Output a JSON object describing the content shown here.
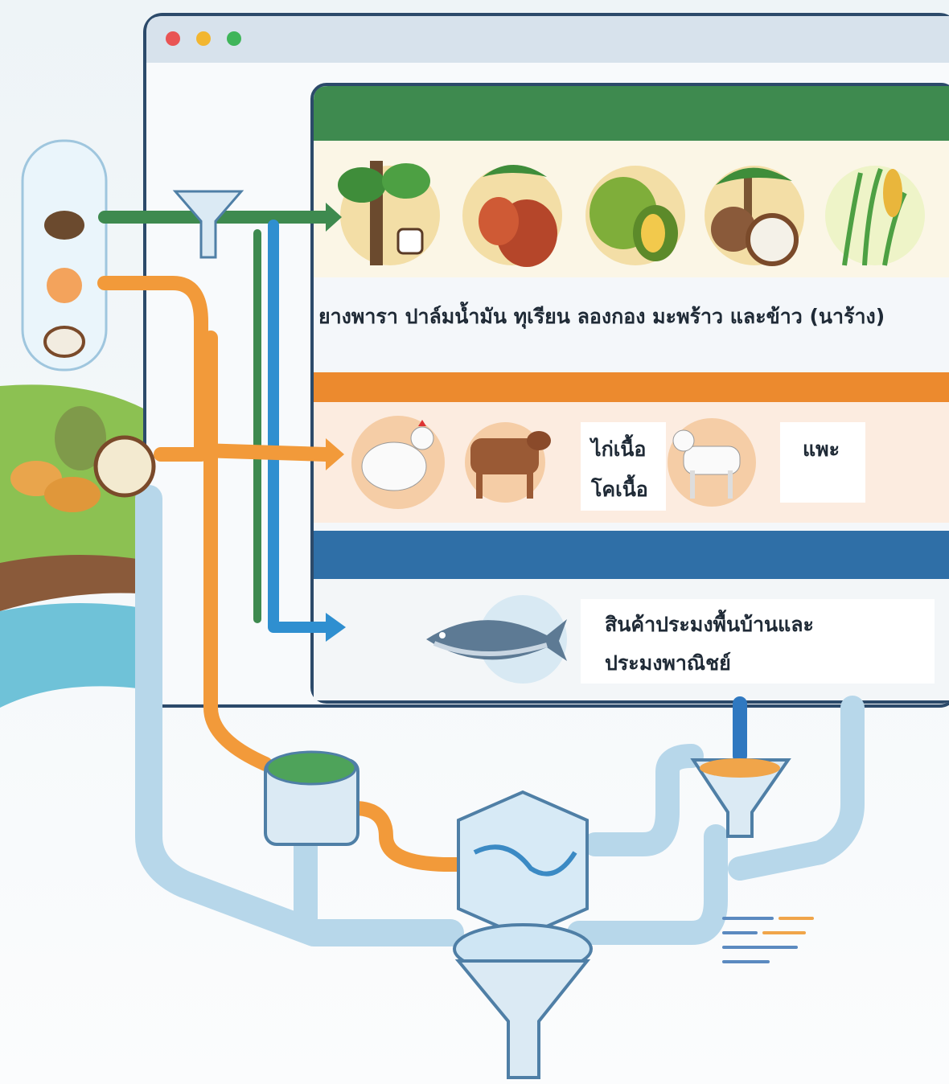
{
  "panels": [
    {
      "label": "ยางพารา ปาล์มน้ำมัน ทุเรียน ลองกอง มะพร้าว และข้าว (นาร้าง)"
    },
    {
      "labels": [
        "ไก่เนื้อ",
        "โคเนื้อ",
        "แพะ"
      ]
    },
    {
      "lines": [
        "สินค้าประมงพื้นบ้านและ",
        "ประมงพาณิชย์"
      ]
    }
  ]
}
